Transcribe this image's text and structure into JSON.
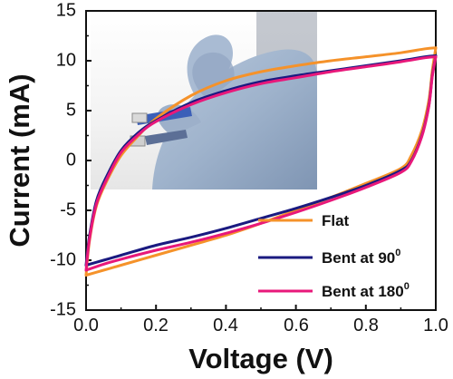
{
  "chart_data": {
    "type": "line",
    "xlabel": "Voltage (V)",
    "ylabel": "Current (mA)",
    "xlim": [
      0.0,
      1.0
    ],
    "ylim": [
      -15,
      15
    ],
    "xticks": [
      "0.0",
      "0.2",
      "0.4",
      "0.6",
      "0.8",
      "1.0"
    ],
    "yticks": [
      "-15",
      "-10",
      "-5",
      "0",
      "5",
      "10",
      "15"
    ],
    "grid": false,
    "legend_position": "bottom-right",
    "inset_photo": "hand-bending-device-photo",
    "series": [
      {
        "name": "Flat",
        "color": "#f5922a",
        "upper": [
          [
            0.0,
            -11.5
          ],
          [
            0.01,
            -8
          ],
          [
            0.03,
            -4.5
          ],
          [
            0.06,
            -2
          ],
          [
            0.1,
            0.5
          ],
          [
            0.15,
            2.5
          ],
          [
            0.2,
            4.2
          ],
          [
            0.3,
            6.5
          ],
          [
            0.4,
            8
          ],
          [
            0.5,
            8.9
          ],
          [
            0.6,
            9.5
          ],
          [
            0.7,
            10
          ],
          [
            0.8,
            10.4
          ],
          [
            0.9,
            10.8
          ],
          [
            0.97,
            11.2
          ],
          [
            1.0,
            11.3
          ]
        ],
        "lower": [
          [
            1.0,
            11.3
          ],
          [
            0.99,
            9
          ],
          [
            0.98,
            6
          ],
          [
            0.96,
            3
          ],
          [
            0.93,
            0.5
          ],
          [
            0.9,
            -0.8
          ],
          [
            0.8,
            -2.3
          ],
          [
            0.7,
            -3.7
          ],
          [
            0.6,
            -5
          ],
          [
            0.5,
            -6.3
          ],
          [
            0.4,
            -7.5
          ],
          [
            0.3,
            -8.5
          ],
          [
            0.2,
            -9.5
          ],
          [
            0.1,
            -10.5
          ],
          [
            0.05,
            -11
          ],
          [
            0.0,
            -11.5
          ]
        ]
      },
      {
        "name": "Bent at 90",
        "name_superscript": "0",
        "color": "#1a1a80",
        "upper": [
          [
            0.0,
            -10.5
          ],
          [
            0.01,
            -7.5
          ],
          [
            0.03,
            -4
          ],
          [
            0.06,
            -1.5
          ],
          [
            0.1,
            1
          ],
          [
            0.15,
            2.8
          ],
          [
            0.2,
            4
          ],
          [
            0.3,
            5.8
          ],
          [
            0.4,
            7
          ],
          [
            0.5,
            7.9
          ],
          [
            0.6,
            8.5
          ],
          [
            0.7,
            9
          ],
          [
            0.8,
            9.5
          ],
          [
            0.9,
            10
          ],
          [
            0.97,
            10.4
          ],
          [
            1.0,
            10.5
          ]
        ],
        "lower": [
          [
            1.0,
            10.5
          ],
          [
            0.99,
            8.5
          ],
          [
            0.98,
            5.5
          ],
          [
            0.96,
            2.5
          ],
          [
            0.93,
            0
          ],
          [
            0.9,
            -1
          ],
          [
            0.8,
            -2.5
          ],
          [
            0.7,
            -3.7
          ],
          [
            0.6,
            -4.8
          ],
          [
            0.5,
            -5.8
          ],
          [
            0.4,
            -6.8
          ],
          [
            0.3,
            -7.7
          ],
          [
            0.2,
            -8.5
          ],
          [
            0.1,
            -9.5
          ],
          [
            0.05,
            -10
          ],
          [
            0.0,
            -10.5
          ]
        ]
      },
      {
        "name": "Bent at 180",
        "name_superscript": "0",
        "color": "#e8187a",
        "upper": [
          [
            0.0,
            -11
          ],
          [
            0.01,
            -7.8
          ],
          [
            0.03,
            -4.3
          ],
          [
            0.06,
            -1.8
          ],
          [
            0.1,
            0.8
          ],
          [
            0.15,
            2.6
          ],
          [
            0.2,
            3.9
          ],
          [
            0.3,
            5.6
          ],
          [
            0.4,
            6.8
          ],
          [
            0.5,
            7.7
          ],
          [
            0.6,
            8.3
          ],
          [
            0.7,
            8.9
          ],
          [
            0.8,
            9.4
          ],
          [
            0.9,
            9.9
          ],
          [
            0.97,
            10.3
          ],
          [
            1.0,
            10.4
          ]
        ],
        "lower": [
          [
            1.0,
            10.4
          ],
          [
            0.99,
            8.4
          ],
          [
            0.98,
            5.4
          ],
          [
            0.96,
            2.4
          ],
          [
            0.93,
            -0.1
          ],
          [
            0.9,
            -1.2
          ],
          [
            0.8,
            -2.7
          ],
          [
            0.7,
            -4
          ],
          [
            0.6,
            -5.2
          ],
          [
            0.5,
            -6.3
          ],
          [
            0.4,
            -7.3
          ],
          [
            0.3,
            -8.2
          ],
          [
            0.2,
            -9
          ],
          [
            0.1,
            -9.9
          ],
          [
            0.05,
            -10.4
          ],
          [
            0.0,
            -11
          ]
        ]
      }
    ]
  }
}
